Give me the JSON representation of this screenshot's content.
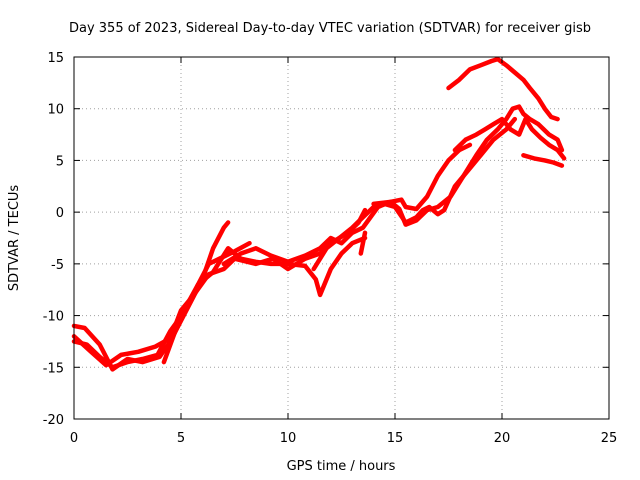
{
  "chart_data": {
    "type": "line",
    "title": "Day 355 of 2023, Sidereal Day-to-day VTEC variation (SDTVAR) for receiver gisb",
    "xlabel": "GPS time / hours",
    "ylabel": "SDTVAR / TECUs",
    "xlim": [
      0,
      25
    ],
    "ylim": [
      -20,
      15
    ],
    "x_ticks": [
      0,
      5,
      10,
      15,
      20,
      25
    ],
    "y_ticks": [
      -20,
      -15,
      -10,
      -5,
      0,
      5,
      10,
      15
    ],
    "x_tick_labels": [
      "0",
      "5",
      "10",
      "15",
      "20",
      "25"
    ],
    "y_tick_labels": [
      "-20",
      "-15",
      "-10",
      "-5",
      "0",
      "5",
      "10",
      "15"
    ],
    "grid": true,
    "color": "#ff0000",
    "series": [
      {
        "name": "trace-1",
        "points": [
          [
            0,
            -11
          ],
          [
            0.5,
            -11.2
          ],
          [
            1.2,
            -12.8
          ],
          [
            1.8,
            -15.2
          ],
          [
            2.5,
            -14.2
          ],
          [
            3.2,
            -14.5
          ],
          [
            4.0,
            -14.0
          ],
          [
            4.5,
            -12.5
          ],
          [
            5.0,
            -10.5
          ],
          [
            5.5,
            -8.5
          ],
          [
            6.0,
            -6.5
          ],
          [
            6.5,
            -3.5
          ],
          [
            7.0,
            -1.5
          ],
          [
            7.2,
            -1.0
          ]
        ]
      },
      {
        "name": "trace-2",
        "points": [
          [
            0,
            -12.5
          ],
          [
            0.6,
            -12.8
          ],
          [
            1.2,
            -14.0
          ],
          [
            1.8,
            -15.0
          ],
          [
            2.5,
            -14.5
          ],
          [
            3.2,
            -14.2
          ],
          [
            3.9,
            -13.8
          ],
          [
            4.5,
            -11.5
          ],
          [
            5.2,
            -9.5
          ],
          [
            5.8,
            -7.0
          ],
          [
            6.3,
            -5.0
          ],
          [
            6.8,
            -4.5
          ],
          [
            7.5,
            -3.8
          ],
          [
            8.2,
            -3.0
          ]
        ]
      },
      {
        "name": "trace-3",
        "points": [
          [
            0,
            -12.0
          ],
          [
            0.8,
            -13.5
          ],
          [
            1.5,
            -14.8
          ],
          [
            2.2,
            -13.8
          ],
          [
            3.0,
            -13.5
          ],
          [
            3.8,
            -13.0
          ],
          [
            4.5,
            -12.2
          ],
          [
            5.0,
            -9.5
          ],
          [
            5.6,
            -8.0
          ],
          [
            6.3,
            -6.0
          ],
          [
            7.0,
            -5.5
          ],
          [
            7.5,
            -4.5
          ],
          [
            8.5,
            -5.0
          ],
          [
            9.3,
            -4.5
          ],
          [
            10.0,
            -5.5
          ],
          [
            10.8,
            -4.5
          ],
          [
            11.5,
            -4.0
          ],
          [
            12.0,
            -3.0
          ],
          [
            12.8,
            -2.0
          ],
          [
            13.3,
            -1.0
          ],
          [
            13.6,
            0.2
          ]
        ]
      },
      {
        "name": "trace-4",
        "points": [
          [
            4.2,
            -14.5
          ],
          [
            5.0,
            -10.0
          ],
          [
            5.8,
            -7.0
          ],
          [
            6.5,
            -5.8
          ],
          [
            7.2,
            -3.5
          ],
          [
            7.8,
            -4.5
          ],
          [
            8.5,
            -4.8
          ],
          [
            9.2,
            -5.0
          ],
          [
            10.0,
            -5.0
          ],
          [
            10.8,
            -5.2
          ],
          [
            11.3,
            -6.5
          ],
          [
            11.5,
            -8.0
          ],
          [
            12.0,
            -5.5
          ],
          [
            12.5,
            -4.0
          ],
          [
            13.0,
            -3.0
          ],
          [
            13.6,
            -2.5
          ]
        ]
      },
      {
        "name": "trace-5",
        "points": [
          [
            7.0,
            -5.0
          ],
          [
            7.8,
            -4.0
          ],
          [
            8.5,
            -3.5
          ],
          [
            9.2,
            -4.2
          ],
          [
            10.0,
            -4.8
          ],
          [
            10.8,
            -4.2
          ],
          [
            11.5,
            -3.5
          ],
          [
            12.0,
            -2.5
          ],
          [
            12.5,
            -3.0
          ],
          [
            13.0,
            -2.0
          ],
          [
            13.5,
            -1.5
          ],
          [
            14.2,
            0.5
          ],
          [
            14.8,
            1.0
          ],
          [
            15.3,
            1.2
          ],
          [
            15.5,
            0.5
          ],
          [
            16.0,
            0.3
          ],
          [
            16.5,
            1.5
          ],
          [
            17.0,
            3.5
          ],
          [
            17.5,
            5.0
          ],
          [
            18.0,
            6.0
          ],
          [
            18.5,
            6.5
          ]
        ]
      },
      {
        "name": "trace-6",
        "points": [
          [
            11.2,
            -5.5
          ],
          [
            11.8,
            -3.5
          ],
          [
            12.4,
            -2.5
          ],
          [
            13.0,
            -1.5
          ],
          [
            13.5,
            -0.5
          ],
          [
            14.0,
            0.5
          ],
          [
            14.5,
            0.8
          ],
          [
            15.0,
            0.5
          ],
          [
            15.5,
            -1.0
          ],
          [
            16.0,
            -0.5
          ],
          [
            16.3,
            0.2
          ],
          [
            16.6,
            0.5
          ],
          [
            17.0,
            -0.2
          ],
          [
            17.3,
            0.2
          ],
          [
            17.8,
            2.5
          ],
          [
            18.4,
            4.0
          ],
          [
            19.0,
            5.5
          ],
          [
            19.6,
            7.0
          ],
          [
            20.2,
            8.0
          ],
          [
            20.6,
            9.0
          ]
        ]
      },
      {
        "name": "trace-7",
        "points": [
          [
            14.0,
            0.8
          ],
          [
            14.8,
            1.0
          ],
          [
            15.2,
            0.3
          ],
          [
            15.5,
            -1.2
          ],
          [
            16.0,
            -0.8
          ],
          [
            16.5,
            0.2
          ],
          [
            17.0,
            0.5
          ],
          [
            17.6,
            1.5
          ],
          [
            18.2,
            3.5
          ],
          [
            18.8,
            5.5
          ],
          [
            19.3,
            7.0
          ],
          [
            19.8,
            8.0
          ],
          [
            20.2,
            9.0
          ],
          [
            20.5,
            10.0
          ],
          [
            20.8,
            10.2
          ],
          [
            21.0,
            9.5
          ],
          [
            21.3,
            9.0
          ],
          [
            21.7,
            8.5
          ],
          [
            22.2,
            7.5
          ],
          [
            22.6,
            7.0
          ],
          [
            22.8,
            6.0
          ]
        ]
      },
      {
        "name": "trace-8",
        "points": [
          [
            17.8,
            6.0
          ],
          [
            18.3,
            7.0
          ],
          [
            18.8,
            7.5
          ],
          [
            19.2,
            8.0
          ],
          [
            19.6,
            8.5
          ],
          [
            20.0,
            9.0
          ],
          [
            20.4,
            8.0
          ],
          [
            20.8,
            7.5
          ],
          [
            21.1,
            9.0
          ],
          [
            21.4,
            8.0
          ],
          [
            21.8,
            7.2
          ],
          [
            22.2,
            6.5
          ],
          [
            22.6,
            6.0
          ],
          [
            22.9,
            5.2
          ]
        ]
      },
      {
        "name": "trace-9",
        "points": [
          [
            21.0,
            5.5
          ],
          [
            21.5,
            5.2
          ],
          [
            22.0,
            5.0
          ],
          [
            22.4,
            4.8
          ],
          [
            22.8,
            4.5
          ]
        ]
      },
      {
        "name": "trace-10",
        "points": [
          [
            17.5,
            12.0
          ],
          [
            18.0,
            12.8
          ],
          [
            18.5,
            13.8
          ],
          [
            19.0,
            14.2
          ],
          [
            19.5,
            14.6
          ],
          [
            19.8,
            14.8
          ],
          [
            20.2,
            14.2
          ],
          [
            20.6,
            13.5
          ],
          [
            21.0,
            12.8
          ],
          [
            21.3,
            12.0
          ],
          [
            21.7,
            11.0
          ],
          [
            22.0,
            10.0
          ],
          [
            22.3,
            9.2
          ],
          [
            22.6,
            9.0
          ]
        ]
      },
      {
        "name": "trace-11",
        "points": [
          [
            13.4,
            -4.0
          ],
          [
            13.5,
            -3.0
          ],
          [
            13.6,
            -2.0
          ]
        ]
      }
    ]
  }
}
